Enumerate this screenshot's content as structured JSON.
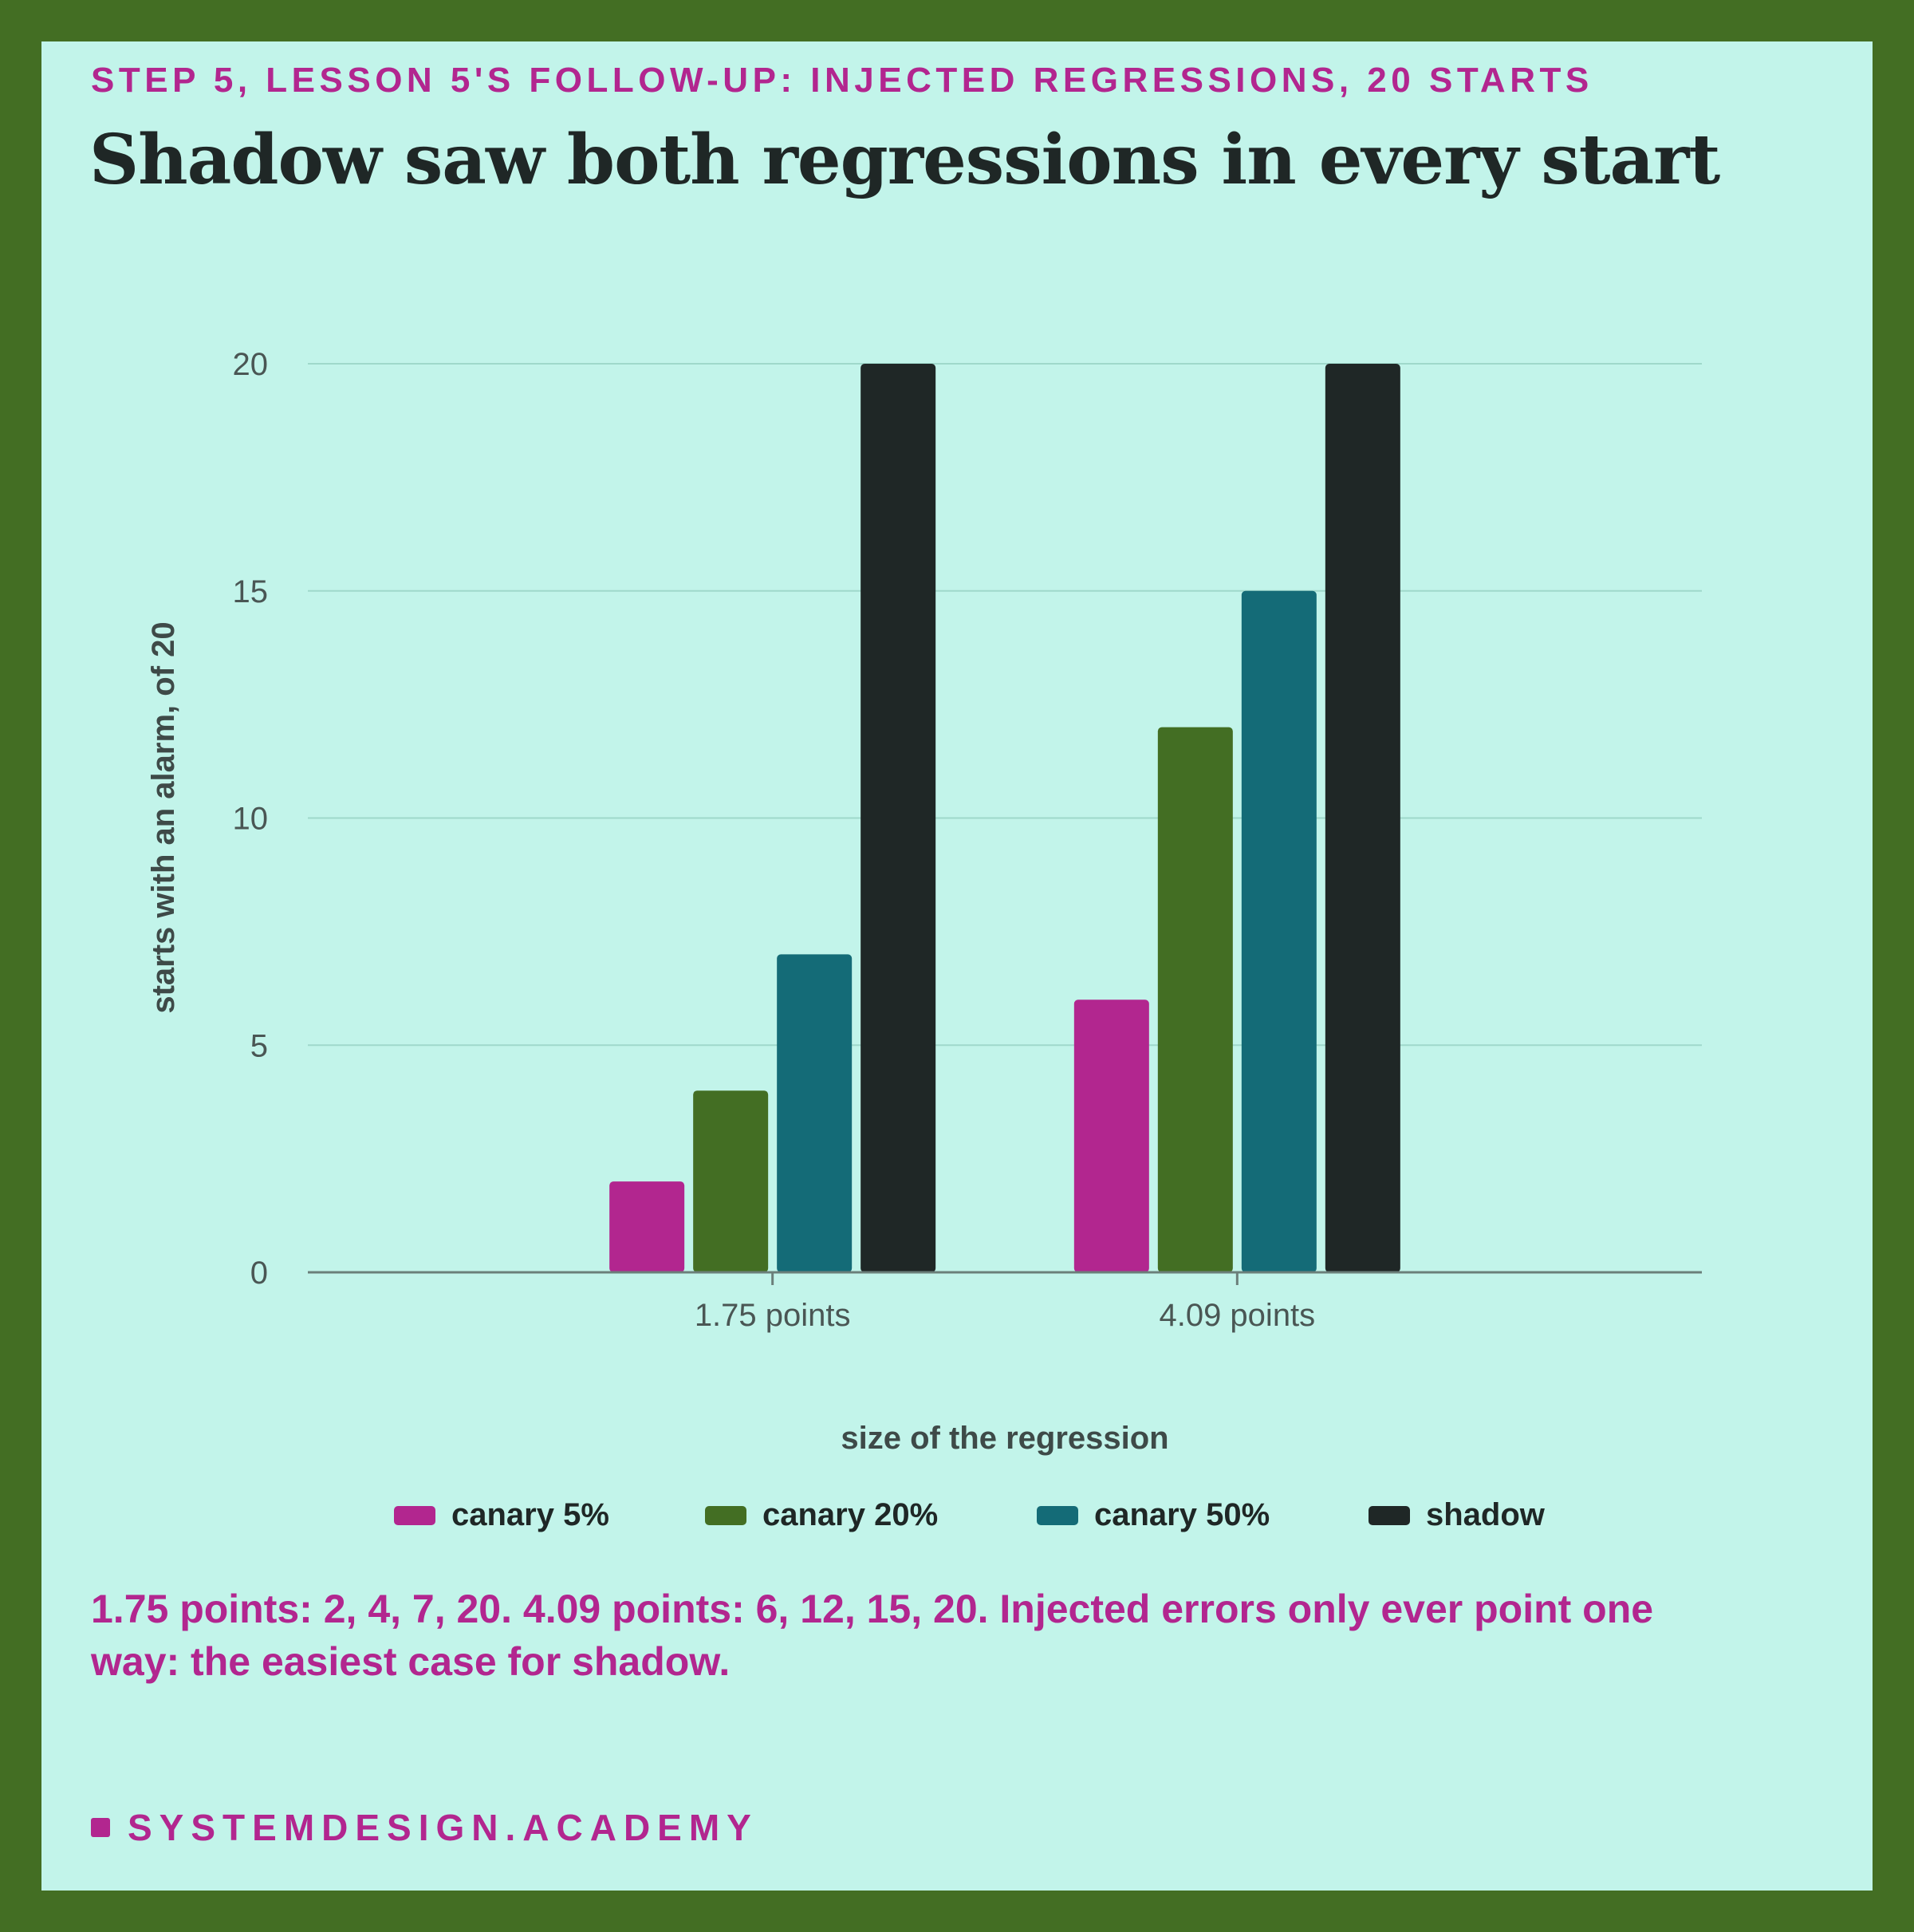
{
  "eyebrow": "STEP 5, LESSON 5'S FOLLOW-UP: INJECTED REGRESSIONS, 20 STARTS",
  "title": "Shadow saw both regressions in every start",
  "note": "1.75 points: 2, 4, 7, 20. 4.09 points: 6, 12, 15, 20. Injected errors only ever point one way: the easiest case for shadow.",
  "brand": "SYSTEMDESIGN.ACADEMY",
  "colors": {
    "background": "#c2f4ea",
    "frame": "#436e23",
    "accent": "#b2268f",
    "text": "#1f2726"
  },
  "chart_data": {
    "type": "bar",
    "categories": [
      "1.75 points",
      "4.09 points"
    ],
    "series": [
      {
        "name": "canary 5%",
        "values": [
          2,
          6
        ],
        "color": "#b2268f"
      },
      {
        "name": "canary 20%",
        "values": [
          4,
          12
        ],
        "color": "#436e23"
      },
      {
        "name": "canary 50%",
        "values": [
          7,
          15
        ],
        "color": "#146b77"
      },
      {
        "name": "shadow",
        "values": [
          20,
          20
        ],
        "color": "#1f2726"
      }
    ],
    "xlabel": "size of the regression",
    "ylabel": "starts with an alarm, of 20",
    "ylim": [
      0,
      20
    ],
    "yticks": [
      0,
      5,
      10,
      15,
      20
    ],
    "grid": true,
    "legend": "bottom-center"
  }
}
